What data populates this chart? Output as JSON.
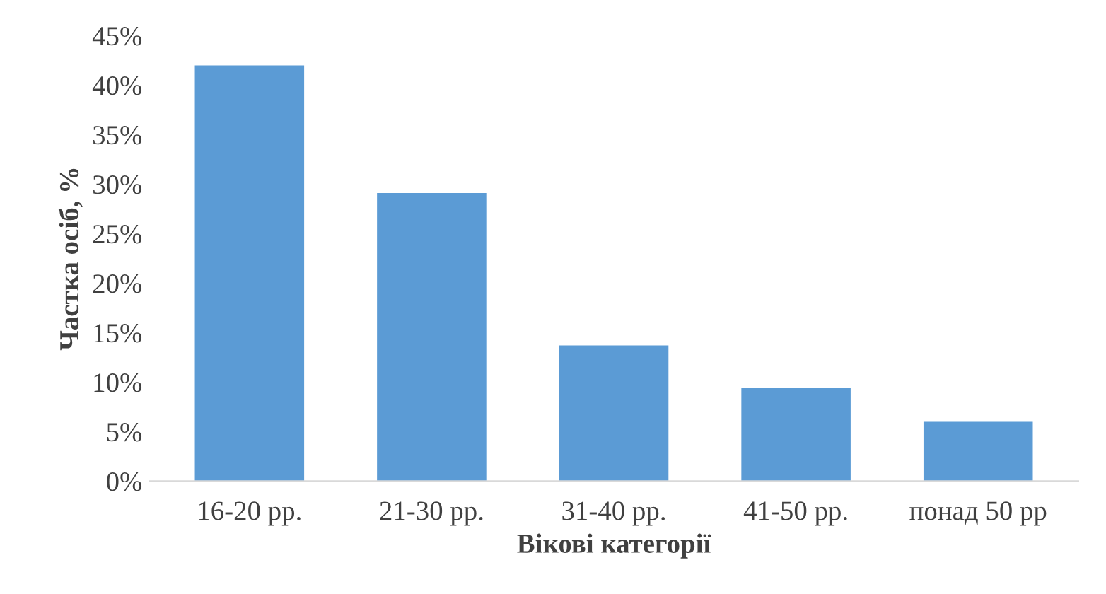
{
  "chart_data": {
    "type": "bar",
    "xlabel": "Вікові категорії",
    "ylabel": "Частка осіб, %",
    "categories": [
      "16-20 рр.",
      "21-30 рр.",
      "31-40 рр.",
      "41-50 рр.",
      "понад 50 рр"
    ],
    "values": [
      42,
      29.1,
      13.7,
      9.4,
      6.0
    ],
    "color": "#5b9bd5",
    "ylim": [
      0,
      45
    ],
    "yticks": [
      {
        "value": 0,
        "label": "0%"
      },
      {
        "value": 5,
        "label": "5%"
      },
      {
        "value": 10,
        "label": "10%"
      },
      {
        "value": 15,
        "label": "15%"
      },
      {
        "value": 20,
        "label": "20%"
      },
      {
        "value": 25,
        "label": "25%"
      },
      {
        "value": 30,
        "label": "30%"
      },
      {
        "value": 35,
        "label": "35%"
      },
      {
        "value": 40,
        "label": "40%"
      },
      {
        "value": 45,
        "label": "45%"
      }
    ],
    "grid": false
  }
}
